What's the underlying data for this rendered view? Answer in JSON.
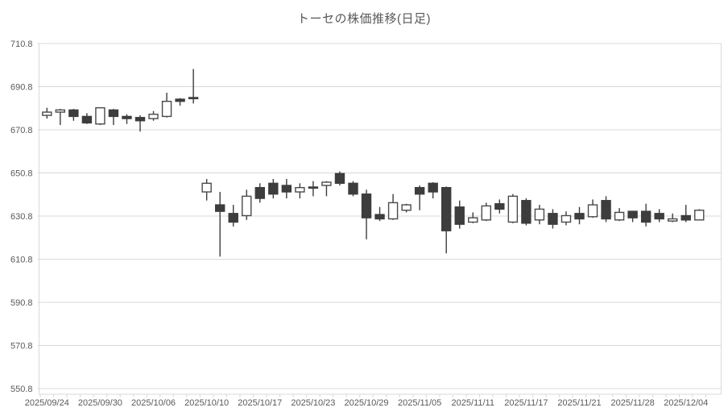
{
  "chart_data": {
    "type": "candlestick",
    "title": "トーセの株価推移(日足)",
    "y_axis": {
      "min": 550.8,
      "max": 710.8,
      "step": 20,
      "tick_labels": [
        "550.8",
        "570.8",
        "590.8",
        "610.8",
        "630.8",
        "650.8",
        "670.8",
        "690.8",
        "710.8"
      ]
    },
    "x_axis": {
      "tick_labels": [
        "2025/09/24",
        "2025/09/30",
        "2025/10/06",
        "2025/10/10",
        "2025/10/17",
        "2025/10/23",
        "2025/10/29",
        "2025/11/05",
        "2025/11/11",
        "2025/11/17",
        "2025/11/21",
        "2025/11/28",
        "2025/12/04"
      ],
      "tick_label_indices": [
        0,
        4,
        8,
        12,
        16,
        20,
        24,
        28,
        32,
        36,
        40,
        44,
        48
      ]
    },
    "colors": {
      "up_fill": "#ffffff",
      "up_stroke": "#4a4a4a",
      "down_fill": "#3d3d3d",
      "down_stroke": "#3d3d3d",
      "wick": "#3d3d3d",
      "grid": "#d9d9d9",
      "axis": "#d9d9d9",
      "text": "#595959",
      "background": "#ffffff"
    },
    "series": [
      {
        "date": "2025/09/24",
        "open": 677.5,
        "high": 681,
        "low": 676,
        "close": 679
      },
      {
        "date": "2025/09/25",
        "open": 679,
        "high": 680.5,
        "low": 673,
        "close": 680
      },
      {
        "date": "2025/09/26",
        "open": 680,
        "high": 680.5,
        "low": 675,
        "close": 677
      },
      {
        "date": "2025/09/29",
        "open": 677,
        "high": 678.5,
        "low": 673.5,
        "close": 674
      },
      {
        "date": "2025/09/30",
        "open": 673.5,
        "high": 681,
        "low": 673,
        "close": 681
      },
      {
        "date": "2025/10/01",
        "open": 680,
        "high": 680.5,
        "low": 673,
        "close": 677
      },
      {
        "date": "2025/10/02",
        "open": 677,
        "high": 678,
        "low": 673.5,
        "close": 676
      },
      {
        "date": "2025/10/03",
        "open": 676.5,
        "high": 677.5,
        "low": 670,
        "close": 675
      },
      {
        "date": "2025/10/06",
        "open": 676,
        "high": 679.5,
        "low": 675,
        "close": 678
      },
      {
        "date": "2025/10/07",
        "open": 677,
        "high": 688,
        "low": 676.5,
        "close": 684
      },
      {
        "date": "2025/10/08",
        "open": 685,
        "high": 685.5,
        "low": 682,
        "close": 684
      },
      {
        "date": "2025/10/09",
        "open": 685.5,
        "high": 699,
        "low": 683,
        "close": 685
      },
      {
        "date": "2025/10/10",
        "open": 642,
        "high": 648,
        "low": 638,
        "close": 646
      },
      {
        "date": "2025/10/14",
        "open": 636,
        "high": 642,
        "low": 612,
        "close": 633
      },
      {
        "date": "2025/10/15",
        "open": 632,
        "high": 636,
        "low": 626,
        "close": 628
      },
      {
        "date": "2025/10/16",
        "open": 631,
        "high": 643,
        "low": 629,
        "close": 640
      },
      {
        "date": "2025/10/17",
        "open": 644,
        "high": 646,
        "low": 637,
        "close": 639
      },
      {
        "date": "2025/10/20",
        "open": 646,
        "high": 648,
        "low": 639,
        "close": 641
      },
      {
        "date": "2025/10/21",
        "open": 645,
        "high": 648,
        "low": 639,
        "close": 642
      },
      {
        "date": "2025/10/22",
        "open": 642,
        "high": 646,
        "low": 639,
        "close": 644
      },
      {
        "date": "2025/10/23",
        "open": 644,
        "high": 647,
        "low": 640,
        "close": 644
      },
      {
        "date": "2025/10/24",
        "open": 645,
        "high": 647,
        "low": 640,
        "close": 646.5
      },
      {
        "date": "2025/10/27",
        "open": 650.5,
        "high": 651.5,
        "low": 645,
        "close": 646
      },
      {
        "date": "2025/10/28",
        "open": 646,
        "high": 647,
        "low": 640,
        "close": 641
      },
      {
        "date": "2025/10/29",
        "open": 641,
        "high": 643,
        "low": 620,
        "close": 630
      },
      {
        "date": "2025/10/30",
        "open": 631.5,
        "high": 635,
        "low": 628.5,
        "close": 629.5
      },
      {
        "date": "2025/10/31",
        "open": 629.5,
        "high": 641,
        "low": 629,
        "close": 637
      },
      {
        "date": "2025/11/04",
        "open": 633.5,
        "high": 636.5,
        "low": 632.5,
        "close": 636
      },
      {
        "date": "2025/11/05",
        "open": 644,
        "high": 645,
        "low": 633.5,
        "close": 641
      },
      {
        "date": "2025/11/06",
        "open": 646,
        "high": 646.5,
        "low": 639,
        "close": 642
      },
      {
        "date": "2025/11/07",
        "open": 644,
        "high": 644.5,
        "low": 613.5,
        "close": 624
      },
      {
        "date": "2025/11/10",
        "open": 635,
        "high": 638,
        "low": 625,
        "close": 627
      },
      {
        "date": "2025/11/11",
        "open": 628,
        "high": 632.5,
        "low": 627.5,
        "close": 630
      },
      {
        "date": "2025/11/12",
        "open": 629,
        "high": 637,
        "low": 628.5,
        "close": 635.5
      },
      {
        "date": "2025/11/13",
        "open": 636.5,
        "high": 638.5,
        "low": 632,
        "close": 634
      },
      {
        "date": "2025/11/14",
        "open": 628,
        "high": 641,
        "low": 627.5,
        "close": 640
      },
      {
        "date": "2025/11/17",
        "open": 638,
        "high": 639,
        "low": 626.5,
        "close": 627.5
      },
      {
        "date": "2025/11/18",
        "open": 629,
        "high": 636,
        "low": 627,
        "close": 634
      },
      {
        "date": "2025/11/19",
        "open": 632,
        "high": 634,
        "low": 625,
        "close": 627
      },
      {
        "date": "2025/11/20",
        "open": 628,
        "high": 633,
        "low": 626.5,
        "close": 631
      },
      {
        "date": "2025/11/21",
        "open": 632,
        "high": 635,
        "low": 627,
        "close": 629.5
      },
      {
        "date": "2025/11/25",
        "open": 630.5,
        "high": 638.5,
        "low": 630,
        "close": 636
      },
      {
        "date": "2025/11/26",
        "open": 638,
        "high": 640,
        "low": 628,
        "close": 629.5
      },
      {
        "date": "2025/11/27",
        "open": 629,
        "high": 634.5,
        "low": 628.5,
        "close": 632.5
      },
      {
        "date": "2025/11/28",
        "open": 633,
        "high": 633,
        "low": 628,
        "close": 630
      },
      {
        "date": "2025/12/01",
        "open": 633,
        "high": 636.5,
        "low": 626,
        "close": 628
      },
      {
        "date": "2025/12/02",
        "open": 632,
        "high": 634,
        "low": 628,
        "close": 629.5
      },
      {
        "date": "2025/12/03",
        "open": 628.5,
        "high": 632,
        "low": 628,
        "close": 629.5
      },
      {
        "date": "2025/12/04",
        "open": 631,
        "high": 636,
        "low": 628,
        "close": 629
      },
      {
        "date": "2025/12/05",
        "open": 629,
        "high": 634,
        "low": 629,
        "close": 633.5
      }
    ]
  }
}
